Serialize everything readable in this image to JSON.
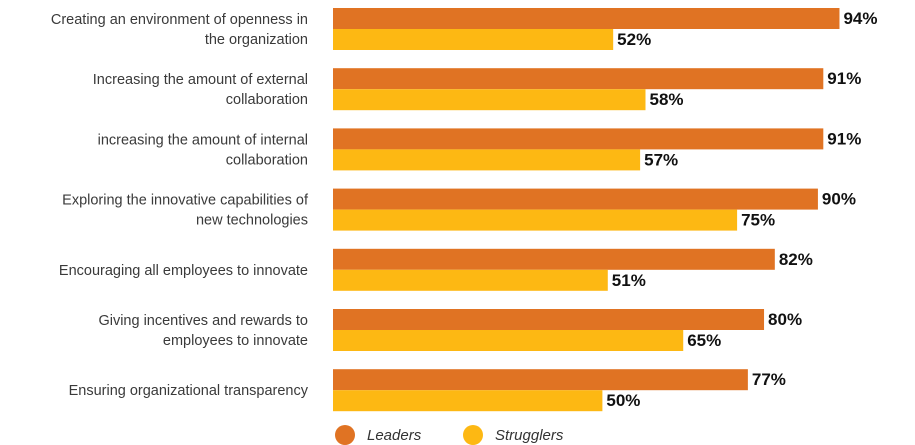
{
  "chart_data": {
    "type": "bar",
    "orientation": "horizontal",
    "categories": [
      [
        "Creating an environment of openness in",
        "the organization"
      ],
      [
        "Increasing the amount of external",
        "collaboration"
      ],
      [
        "increasing the amount of internal",
        "collaboration"
      ],
      [
        "Exploring the innovative capabilities of",
        "new technologies"
      ],
      [
        "Encouraging all employees to innovate"
      ],
      [
        "Giving incentives and rewards to",
        "employees to innovate"
      ],
      [
        "Ensuring organizational transparency"
      ]
    ],
    "series": [
      {
        "name": "Leaders",
        "color": "#E07323",
        "values": [
          94,
          91,
          91,
          90,
          82,
          80,
          77
        ],
        "labels": [
          "94%",
          "91%",
          "91%",
          "90%",
          "82%",
          "80%",
          "77%"
        ]
      },
      {
        "name": "Strugglers",
        "color": "#FDB813",
        "values": [
          52,
          58,
          57,
          75,
          51,
          65,
          50
        ],
        "labels": [
          "52%",
          "58%",
          "57%",
          "75%",
          "51%",
          "65%",
          "50%"
        ]
      }
    ],
    "xlim": [
      0,
      100
    ],
    "grid": false,
    "legend": "bottom"
  }
}
